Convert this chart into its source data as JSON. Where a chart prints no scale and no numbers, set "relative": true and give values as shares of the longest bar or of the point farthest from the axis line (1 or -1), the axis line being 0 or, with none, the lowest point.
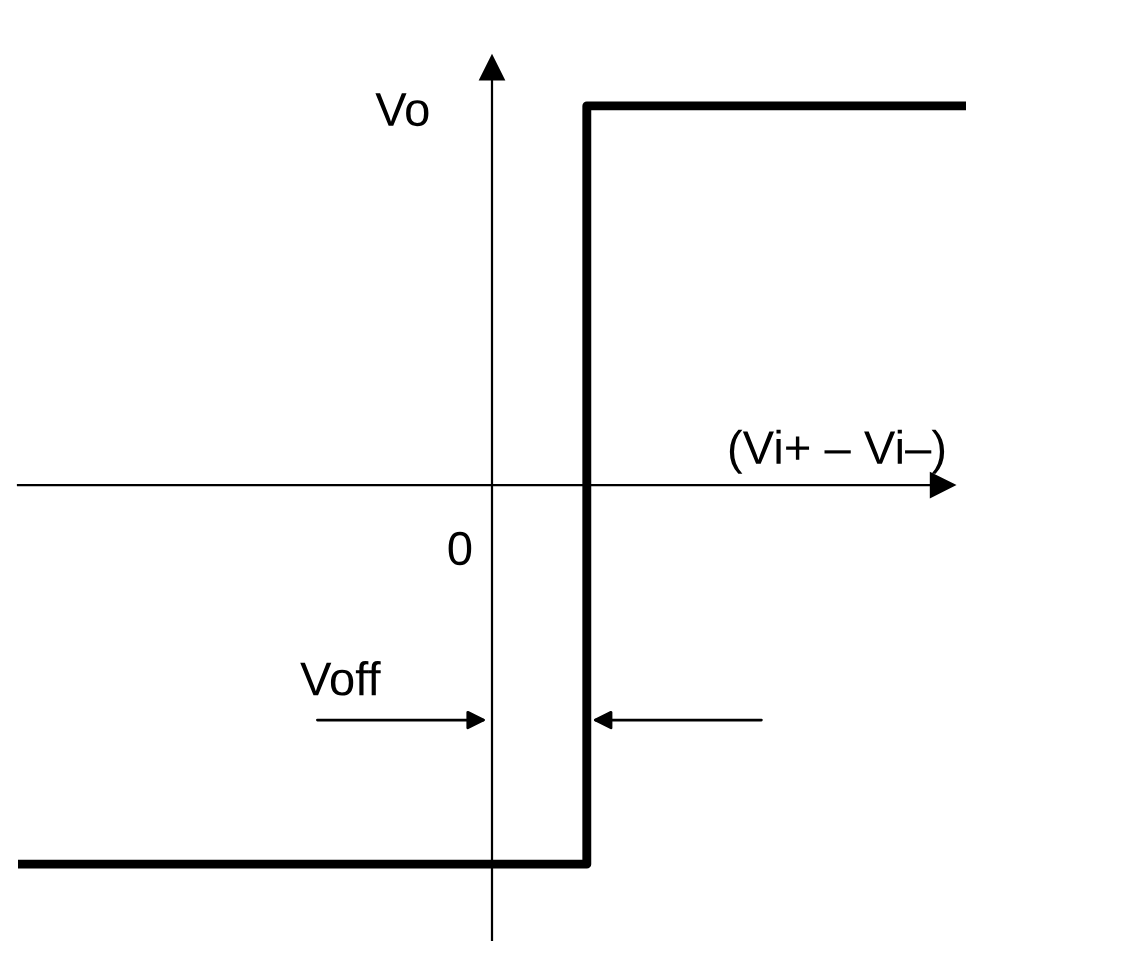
{
  "chart_data": {
    "type": "step",
    "relative": true,
    "xlabel": "(Vi+ – Vi–)",
    "ylabel": "Vo",
    "categories": [
      null,
      null,
      null,
      null,
      null,
      null,
      null,
      null,
      null,
      null,
      null,
      null,
      null,
      null,
      null,
      null,
      null,
      null,
      null,
      null,
      null
    ],
    "series": [
      {
        "color": "#000000",
        "values": [
          -1,
          -1,
          -1,
          -1,
          -1,
          -1,
          -1,
          -1,
          -1,
          -1,
          -1,
          -1,
          1,
          1,
          1,
          1,
          1,
          1,
          1,
          1,
          1
        ]
      }
    ],
    "annotations": [
      "0",
      "Voff"
    ],
    "marker": "none",
    "line_style": "solid"
  }
}
